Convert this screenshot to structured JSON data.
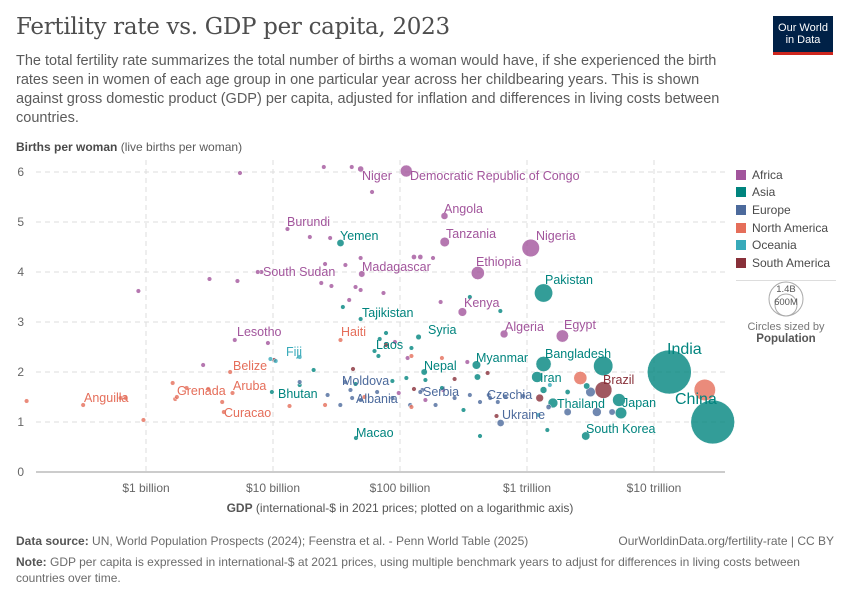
{
  "header": {
    "title": "Fertility rate vs. GDP per capita, 2023",
    "subtitle": "The total fertility rate summarizes the total number of births a woman would have, if she experienced the birth rates seen in women of each age group in one particular year across her childbearing years. This is shown against gross domestic product (GDP) per capita, adjusted for inflation and differences in living costs between countries.",
    "logo": [
      "Our World",
      "in Data"
    ]
  },
  "footer": {
    "source_label": "Data source:",
    "source": "UN, World Population Prospects (2024); Feenstra et al. - Penn World Table (2025)",
    "credit": "OurWorldinData.org/fertility-rate | CC BY",
    "note_label": "Note:",
    "note": "GDP per capita is expressed in international-$ at 2021 prices, using multiple benchmark years to adjust for differences in living costs between countries over time."
  },
  "size_legend": {
    "big": "1.4B",
    "small": "600M",
    "caption": "Circles sized by",
    "variable": "Population"
  },
  "chart_data": {
    "type": "scatter",
    "title": "Fertility rate vs. GDP per capita, 2023",
    "ylabel_bold": "Births per woman",
    "ylabel_rest": "(live births per woman)",
    "xlabel_bold": "GDP",
    "xlabel_rest": "(international-$ in 2021 prices; plotted on a logarithmic axis)",
    "x_scale": "log",
    "xlim": [
      100000000.0,
      30000000000000.0
    ],
    "ylim": [
      0,
      6.2
    ],
    "grid": true,
    "legend_position": "right",
    "x_ticks": [
      {
        "v": 1000000000.0,
        "label": "$1 billion"
      },
      {
        "v": 10000000000.0,
        "label": "$10 billion"
      },
      {
        "v": 100000000000.0,
        "label": "$100 billion"
      },
      {
        "v": 1000000000000.0,
        "label": "$1 trillion"
      },
      {
        "v": 10000000000000.0,
        "label": "$10 trillion"
      }
    ],
    "y_ticks": [
      0,
      1,
      2,
      3,
      4,
      5,
      6
    ],
    "continents": [
      {
        "name": "Africa",
        "color": "#a2559c"
      },
      {
        "name": "Asia",
        "color": "#00847e"
      },
      {
        "name": "Europe",
        "color": "#4c6a9c"
      },
      {
        "name": "North America",
        "color": "#e56e5a"
      },
      {
        "name": "Oceania",
        "color": "#38aaba"
      },
      {
        "name": "South America",
        "color": "#883039"
      }
    ],
    "labeled_points": [
      {
        "label": "Niger",
        "c": "Africa",
        "gdp": 49000000000.0,
        "y": 6.06,
        "pop": 27
      },
      {
        "label": "Democratic Republic of Congo",
        "c": "Africa",
        "gdp": 112000000000.0,
        "y": 6.02,
        "pop": 105
      },
      {
        "label": "Angola",
        "c": "Africa",
        "gdp": 224000000000.0,
        "y": 5.12,
        "pop": 37
      },
      {
        "label": "Burundi",
        "c": "Africa",
        "gdp": 13000000000.0,
        "y": 4.86,
        "pop": 13
      },
      {
        "label": "Yemen",
        "c": "Asia",
        "gdp": 34000000000.0,
        "y": 4.58,
        "pop": 39
      },
      {
        "label": "Tanzania",
        "c": "Africa",
        "gdp": 225000000000.0,
        "y": 4.6,
        "pop": 67
      },
      {
        "label": "Nigeria",
        "c": "Africa",
        "gdp": 1070000000000.0,
        "y": 4.48,
        "pop": 228
      },
      {
        "label": "Madagascar",
        "c": "Africa",
        "gdp": 50000000000.0,
        "y": 3.96,
        "pop": 31
      },
      {
        "label": "South Sudan",
        "c": "Africa",
        "gdp": 8100000000.0,
        "y": 4.0,
        "pop": 11
      },
      {
        "label": "Ethiopia",
        "c": "Africa",
        "gdp": 410000000000.0,
        "y": 3.98,
        "pop": 129
      },
      {
        "label": "Pakistan",
        "c": "Asia",
        "gdp": 1350000000000.0,
        "y": 3.58,
        "pop": 247
      },
      {
        "label": "Tajikistan",
        "c": "Asia",
        "gdp": 49000000000.0,
        "y": 3.06,
        "pop": 10
      },
      {
        "label": "Kenya",
        "c": "Africa",
        "gdp": 310000000000.0,
        "y": 3.2,
        "pop": 55
      },
      {
        "label": "Algeria",
        "c": "Africa",
        "gdp": 660000000000.0,
        "y": 2.76,
        "pop": 46
      },
      {
        "label": "Egypt",
        "c": "Africa",
        "gdp": 1900000000000.0,
        "y": 2.72,
        "pop": 113
      },
      {
        "label": "Lesotho",
        "c": "Africa",
        "gdp": 5000000000.0,
        "y": 2.64,
        "pop": 2
      },
      {
        "label": "Haiti",
        "c": "North America",
        "gdp": 34000000000.0,
        "y": 2.64,
        "pop": 12
      },
      {
        "label": "Syria",
        "c": "Asia",
        "gdp": 140000000000.0,
        "y": 2.7,
        "pop": 23
      },
      {
        "label": "Laos",
        "c": "Asia",
        "gdp": 63000000000.0,
        "y": 2.42,
        "pop": 8
      },
      {
        "label": "Fiji",
        "c": "Oceania",
        "gdp": 10500000000.0,
        "y": 2.22,
        "pop": 1
      },
      {
        "label": "Belize",
        "c": "North America",
        "gdp": 4600000000.0,
        "y": 2.0,
        "pop": 0.4
      },
      {
        "label": "Nepal",
        "c": "Asia",
        "gdp": 155000000000.0,
        "y": 2.0,
        "pop": 30
      },
      {
        "label": "Myanmar",
        "c": "Asia",
        "gdp": 400000000000.0,
        "y": 2.14,
        "pop": 54
      },
      {
        "label": "Bangladesh",
        "c": "Asia",
        "gdp": 1350000000000.0,
        "y": 2.16,
        "pop": 172
      },
      {
        "label": "India",
        "c": "Asia",
        "gdp": 13200000000000.0,
        "y": 2.0,
        "pop": 1430
      },
      {
        "label": "Iran",
        "c": "Asia",
        "gdp": 1200000000000.0,
        "y": 1.9,
        "pop": 90
      },
      {
        "label": "Brazil",
        "c": "South America",
        "gdp": 4000000000000.0,
        "y": 1.64,
        "pop": 211
      },
      {
        "label": "Aruba",
        "c": "North America",
        "gdp": 4800000000.0,
        "y": 1.58,
        "pop": 0.1
      },
      {
        "label": "Grenada",
        "c": "North America",
        "gdp": 1750000000.0,
        "y": 1.5,
        "pop": 0.1
      },
      {
        "label": "Anguilla",
        "c": "North America",
        "gdp": 320000000.0,
        "y": 1.34,
        "pop": 0.02
      },
      {
        "label": "Curacao",
        "c": "North America",
        "gdp": 4100000000.0,
        "y": 1.2,
        "pop": 0.2
      },
      {
        "label": "Bhutan",
        "c": "Asia",
        "gdp": 9800000000.0,
        "y": 1.6,
        "pop": 0.8
      },
      {
        "label": "Moldova",
        "c": "Europe",
        "gdp": 37000000000.0,
        "y": 1.8,
        "pop": 3
      },
      {
        "label": "Albania",
        "c": "Europe",
        "gdp": 42000000000.0,
        "y": 1.48,
        "pop": 3
      },
      {
        "label": "Serbia",
        "c": "Europe",
        "gdp": 150000000000.0,
        "y": 1.64,
        "pop": 7
      },
      {
        "label": "Czechia",
        "c": "Europe",
        "gdp": 500000000000.0,
        "y": 1.54,
        "pop": 11
      },
      {
        "label": "Ukraine",
        "c": "Europe",
        "gdp": 620000000000.0,
        "y": 0.98,
        "pop": 38
      },
      {
        "label": "Thailand",
        "c": "Asia",
        "gdp": 1600000000000.0,
        "y": 1.38,
        "pop": 72
      },
      {
        "label": "Japan",
        "c": "Asia",
        "gdp": 5300000000000.0,
        "y": 1.44,
        "pop": 124
      },
      {
        "label": "China",
        "c": "Asia",
        "gdp": 29000000000000.0,
        "y": 1.0,
        "pop": 1420
      },
      {
        "label": "South Korea",
        "c": "Asia",
        "gdp": 2900000000000.0,
        "y": 0.72,
        "pop": 52
      },
      {
        "label": "Macao",
        "c": "Asia",
        "gdp": 45000000000.0,
        "y": 0.68,
        "pop": 0.7
      }
    ],
    "unlabeled_points": [
      {
        "c": "Africa",
        "lg": 9.74,
        "y": 5.98
      },
      {
        "c": "Africa",
        "lg": 10.4,
        "y": 6.1
      },
      {
        "c": "Africa",
        "lg": 10.62,
        "y": 6.1
      },
      {
        "c": "Africa",
        "lg": 10.78,
        "y": 5.6
      },
      {
        "c": "Africa",
        "lg": 8.94,
        "y": 3.62
      },
      {
        "c": "Africa",
        "lg": 9.5,
        "y": 3.86
      },
      {
        "c": "Africa",
        "lg": 9.72,
        "y": 3.82
      },
      {
        "c": "Africa",
        "lg": 9.88,
        "y": 4.0
      },
      {
        "c": "Africa",
        "lg": 10.29,
        "y": 4.7
      },
      {
        "c": "Africa",
        "lg": 10.45,
        "y": 4.68
      },
      {
        "c": "Africa",
        "lg": 10.41,
        "y": 4.16
      },
      {
        "c": "Africa",
        "lg": 10.57,
        "y": 4.14
      },
      {
        "c": "Africa",
        "lg": 10.46,
        "y": 3.72
      },
      {
        "c": "Africa",
        "lg": 10.65,
        "y": 3.7
      },
      {
        "c": "Africa",
        "lg": 10.69,
        "y": 3.64
      },
      {
        "c": "Africa",
        "lg": 10.38,
        "y": 3.78
      },
      {
        "c": "Africa",
        "lg": 10.6,
        "y": 3.44
      },
      {
        "c": "Africa",
        "lg": 10.87,
        "y": 3.58
      },
      {
        "c": "Africa",
        "lg": 11.11,
        "y": 4.3,
        "pop": 20
      },
      {
        "c": "Africa",
        "lg": 11.16,
        "y": 4.3,
        "pop": 20
      },
      {
        "c": "Africa",
        "lg": 11.26,
        "y": 4.28
      },
      {
        "c": "Africa",
        "lg": 11.32,
        "y": 3.4
      },
      {
        "c": "Africa",
        "lg": 10.69,
        "y": 4.28
      },
      {
        "c": "Africa",
        "lg": 9.45,
        "y": 2.14
      },
      {
        "c": "Africa",
        "lg": 9.96,
        "y": 2.58
      },
      {
        "c": "Africa",
        "lg": 10.96,
        "y": 2.6
      },
      {
        "c": "Africa",
        "lg": 11.53,
        "y": 2.2
      },
      {
        "c": "Africa",
        "lg": 11.34,
        "y": 1.64
      },
      {
        "c": "Africa",
        "lg": 11.06,
        "y": 2.28
      },
      {
        "c": "Africa",
        "lg": 10.99,
        "y": 1.58
      },
      {
        "c": "Africa",
        "lg": 11.2,
        "y": 1.44
      },
      {
        "c": "Asia",
        "lg": 10.55,
        "y": 3.3
      },
      {
        "c": "Asia",
        "lg": 10.84,
        "y": 2.66
      },
      {
        "c": "Asia",
        "lg": 11.09,
        "y": 2.48
      },
      {
        "c": "Asia",
        "lg": 10.83,
        "y": 2.32
      },
      {
        "c": "Asia",
        "lg": 11.55,
        "y": 3.5
      },
      {
        "c": "Asia",
        "lg": 11.79,
        "y": 3.22
      },
      {
        "c": "Asia",
        "lg": 10.94,
        "y": 1.82
      },
      {
        "c": "Asia",
        "lg": 11.05,
        "y": 1.88
      },
      {
        "c": "Asia",
        "lg": 11.2,
        "y": 1.84
      },
      {
        "c": "Asia",
        "lg": 11.33,
        "y": 1.68
      },
      {
        "c": "Asia",
        "lg": 11.61,
        "y": 1.9,
        "pop": 30
      },
      {
        "c": "Asia",
        "lg": 12.6,
        "y": 2.12,
        "pop": 278
      },
      {
        "c": "Asia",
        "lg": 12.13,
        "y": 1.64,
        "pop": 35
      },
      {
        "c": "Asia",
        "lg": 12.32,
        "y": 1.6,
        "pop": 20
      },
      {
        "c": "Asia",
        "lg": 12.47,
        "y": 1.72,
        "pop": 30
      },
      {
        "c": "Asia",
        "lg": 12.74,
        "y": 1.18,
        "pop": 99
      },
      {
        "c": "Asia",
        "lg": 11.5,
        "y": 1.24,
        "pop": 15
      },
      {
        "c": "Asia",
        "lg": 11.63,
        "y": 0.72
      },
      {
        "c": "Asia",
        "lg": 12.16,
        "y": 0.84
      },
      {
        "c": "Asia",
        "lg": 10.65,
        "y": 1.76
      },
      {
        "c": "Asia",
        "lg": 10.21,
        "y": 1.74
      },
      {
        "c": "Asia",
        "lg": 10.89,
        "y": 2.78
      },
      {
        "c": "Asia",
        "lg": 10.32,
        "y": 2.04
      },
      {
        "c": "Europe",
        "lg": 10.21,
        "y": 1.8
      },
      {
        "c": "Europe",
        "lg": 10.43,
        "y": 1.54
      },
      {
        "c": "Europe",
        "lg": 10.53,
        "y": 1.34
      },
      {
        "c": "Europe",
        "lg": 10.61,
        "y": 1.64
      },
      {
        "c": "Europe",
        "lg": 10.69,
        "y": 1.44
      },
      {
        "c": "Europe",
        "lg": 10.82,
        "y": 1.6
      },
      {
        "c": "Europe",
        "lg": 10.94,
        "y": 1.48
      },
      {
        "c": "Europe",
        "lg": 11.08,
        "y": 1.34
      },
      {
        "c": "Europe",
        "lg": 11.16,
        "y": 1.6
      },
      {
        "c": "Europe",
        "lg": 11.28,
        "y": 1.34
      },
      {
        "c": "Europe",
        "lg": 11.43,
        "y": 1.48
      },
      {
        "c": "Europe",
        "lg": 11.55,
        "y": 1.54
      },
      {
        "c": "Europe",
        "lg": 11.63,
        "y": 1.4
      },
      {
        "c": "Europe",
        "lg": 11.71,
        "y": 1.48
      },
      {
        "c": "Europe",
        "lg": 11.77,
        "y": 1.4
      },
      {
        "c": "Europe",
        "lg": 11.83,
        "y": 1.5
      },
      {
        "c": "Europe",
        "lg": 11.97,
        "y": 1.52
      },
      {
        "c": "Europe",
        "lg": 12.17,
        "y": 1.3,
        "pop": 20
      },
      {
        "c": "Europe",
        "lg": 12.32,
        "y": 1.2,
        "pop": 40
      },
      {
        "c": "Europe",
        "lg": 12.5,
        "y": 1.6,
        "pop": 68
      },
      {
        "c": "Europe",
        "lg": 12.55,
        "y": 1.2,
        "pop": 59
      },
      {
        "c": "Europe",
        "lg": 12.67,
        "y": 1.2,
        "pop": 30
      },
      {
        "c": "North America",
        "lg": 8.06,
        "y": 1.42
      },
      {
        "c": "North America",
        "lg": 8.8,
        "y": 1.48
      },
      {
        "c": "North America",
        "lg": 8.84,
        "y": 1.48
      },
      {
        "c": "North America",
        "lg": 9.21,
        "y": 1.78
      },
      {
        "c": "North America",
        "lg": 9.23,
        "y": 1.46
      },
      {
        "c": "North America",
        "lg": 9.32,
        "y": 1.68
      },
      {
        "c": "North America",
        "lg": 9.49,
        "y": 1.66
      },
      {
        "c": "North America",
        "lg": 9.6,
        "y": 1.4
      },
      {
        "c": "North America",
        "lg": 8.98,
        "y": 1.04
      },
      {
        "c": "North America",
        "lg": 10.13,
        "y": 1.32
      },
      {
        "c": "North America",
        "lg": 10.41,
        "y": 1.34
      },
      {
        "c": "North America",
        "lg": 10.72,
        "y": 1.5
      },
      {
        "c": "North America",
        "lg": 11.09,
        "y": 1.3
      },
      {
        "c": "North America",
        "lg": 11.09,
        "y": 2.32
      },
      {
        "c": "North America",
        "lg": 11.33,
        "y": 2.28
      },
      {
        "c": "North America",
        "lg": 12.42,
        "y": 1.88,
        "pop": 129
      },
      {
        "c": "North America",
        "lg": 13.4,
        "y": 1.64,
        "pop": 340
      },
      {
        "c": "South America",
        "lg": 10.01,
        "y": 2.24
      },
      {
        "c": "South America",
        "lg": 10.63,
        "y": 2.06
      },
      {
        "c": "South America",
        "lg": 10.89,
        "y": 2.54
      },
      {
        "c": "South America",
        "lg": 11.11,
        "y": 1.66
      },
      {
        "c": "South America",
        "lg": 11.43,
        "y": 1.86
      },
      {
        "c": "South America",
        "lg": 11.69,
        "y": 1.98
      },
      {
        "c": "South America",
        "lg": 11.76,
        "y": 1.12
      },
      {
        "c": "South America",
        "lg": 12.1,
        "y": 1.48,
        "pop": 45
      },
      {
        "c": "Oceania",
        "lg": 9.98,
        "y": 2.26
      },
      {
        "c": "Oceania",
        "lg": 10.21,
        "y": 2.3
      },
      {
        "c": "Oceania",
        "lg": 12.18,
        "y": 1.74,
        "pop": 5
      },
      {
        "c": "Oceania",
        "lg": 12.09,
        "y": 1.14
      }
    ]
  }
}
